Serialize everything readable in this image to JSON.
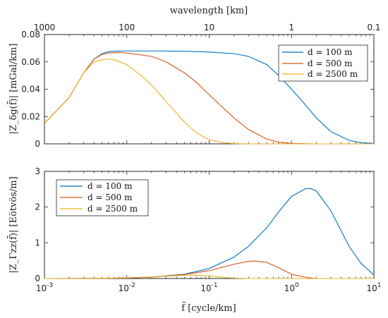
{
  "colors": {
    "d100": "#0072bd",
    "d500": "#d95319",
    "d2500": "#edb120"
  },
  "chart_data": [
    {
      "type": "line",
      "xscale": "log",
      "xlim": [
        0.001,
        10
      ],
      "ylim": [
        0,
        0.08
      ],
      "yticks": [
        "0",
        "0.02",
        "0.04",
        "0.06",
        "0.08"
      ],
      "ylabel": "|Z_δg(f̄)| [mGal/km]",
      "top_xlabel": "wavelength [km]",
      "top_xticks": [
        "1000",
        "100",
        "10",
        "1",
        "0.1"
      ],
      "legend_position": "top-right",
      "series": [
        {
          "name": "d = 100 m",
          "color_key": "d100",
          "points": [
            [
              0.001,
              0.015
            ],
            [
              0.002,
              0.034
            ],
            [
              0.003,
              0.052
            ],
            [
              0.004,
              0.062
            ],
            [
              0.005,
              0.066
            ],
            [
              0.006,
              0.0675
            ],
            [
              0.008,
              0.068
            ],
            [
              0.01,
              0.068
            ],
            [
              0.02,
              0.068
            ],
            [
              0.05,
              0.0678
            ],
            [
              0.1,
              0.0672
            ],
            [
              0.2,
              0.066
            ],
            [
              0.3,
              0.064
            ],
            [
              0.5,
              0.058
            ],
            [
              0.7,
              0.05
            ],
            [
              1,
              0.04
            ],
            [
              1.5,
              0.028
            ],
            [
              2,
              0.019
            ],
            [
              3,
              0.009
            ],
            [
              5,
              0.0025
            ],
            [
              7,
              0.0008
            ],
            [
              10,
              0.0002
            ]
          ]
        },
        {
          "name": "d = 500 m",
          "color_key": "d500",
          "points": [
            [
              0.001,
              0.015
            ],
            [
              0.002,
              0.034
            ],
            [
              0.003,
              0.052
            ],
            [
              0.004,
              0.062
            ],
            [
              0.005,
              0.0655
            ],
            [
              0.006,
              0.0665
            ],
            [
              0.008,
              0.067
            ],
            [
              0.01,
              0.0665
            ],
            [
              0.02,
              0.064
            ],
            [
              0.03,
              0.06
            ],
            [
              0.05,
              0.052
            ],
            [
              0.07,
              0.045
            ],
            [
              0.1,
              0.036
            ],
            [
              0.15,
              0.026
            ],
            [
              0.2,
              0.019
            ],
            [
              0.3,
              0.0105
            ],
            [
              0.5,
              0.0035
            ],
            [
              0.7,
              0.0012
            ],
            [
              1,
              0.0003
            ],
            [
              2,
              0.0
            ],
            [
              10,
              0.0
            ]
          ]
        },
        {
          "name": "d = 2500 m",
          "color_key": "d2500",
          "points": [
            [
              0.001,
              0.015
            ],
            [
              0.002,
              0.034
            ],
            [
              0.003,
              0.052
            ],
            [
              0.004,
              0.06
            ],
            [
              0.005,
              0.0615
            ],
            [
              0.006,
              0.062
            ],
            [
              0.007,
              0.0615
            ],
            [
              0.01,
              0.058
            ],
            [
              0.015,
              0.05
            ],
            [
              0.02,
              0.043
            ],
            [
              0.03,
              0.031
            ],
            [
              0.05,
              0.016
            ],
            [
              0.07,
              0.008
            ],
            [
              0.1,
              0.003
            ],
            [
              0.15,
              0.0008
            ],
            [
              0.2,
              0.0002
            ],
            [
              0.3,
              0.0
            ],
            [
              10,
              0.0
            ]
          ]
        }
      ]
    },
    {
      "type": "line",
      "xscale": "log",
      "xlim": [
        0.001,
        10
      ],
      "ylim": [
        0,
        3
      ],
      "yticks": [
        "0",
        "1",
        "2",
        "3"
      ],
      "xticks": [
        "10^-3",
        "10^-2",
        "10^-1",
        "10^0",
        "10^1"
      ],
      "xlabel": "f̄ [cycle/km]",
      "ylabel": "|Z_Γzz(f̄)| [Eötvös/m]",
      "legend_position": "top-left",
      "series": [
        {
          "name": "d = 100 m",
          "color_key": "d100",
          "points": [
            [
              0.001,
              0.0
            ],
            [
              0.005,
              0.005
            ],
            [
              0.01,
              0.015
            ],
            [
              0.02,
              0.04
            ],
            [
              0.05,
              0.12
            ],
            [
              0.1,
              0.28
            ],
            [
              0.2,
              0.6
            ],
            [
              0.3,
              0.9
            ],
            [
              0.5,
              1.42
            ],
            [
              0.7,
              1.87
            ],
            [
              1,
              2.3
            ],
            [
              1.5,
              2.52
            ],
            [
              1.7,
              2.52
            ],
            [
              2,
              2.45
            ],
            [
              3,
              1.9
            ],
            [
              5,
              0.9
            ],
            [
              7,
              0.42
            ],
            [
              10,
              0.1
            ]
          ]
        },
        {
          "name": "d = 500 m",
          "color_key": "d500",
          "points": [
            [
              0.001,
              0.0
            ],
            [
              0.005,
              0.005
            ],
            [
              0.01,
              0.015
            ],
            [
              0.02,
              0.035
            ],
            [
              0.05,
              0.11
            ],
            [
              0.1,
              0.22
            ],
            [
              0.2,
              0.4
            ],
            [
              0.3,
              0.48
            ],
            [
              0.35,
              0.49
            ],
            [
              0.5,
              0.45
            ],
            [
              0.7,
              0.3
            ],
            [
              1,
              0.12
            ],
            [
              1.5,
              0.03
            ],
            [
              2,
              0.0
            ],
            [
              10,
              0.0
            ]
          ]
        },
        {
          "name": "d = 2500 m",
          "color_key": "d2500",
          "points": [
            [
              0.001,
              0.0
            ],
            [
              0.005,
              0.007
            ],
            [
              0.01,
              0.02
            ],
            [
              0.02,
              0.045
            ],
            [
              0.05,
              0.09
            ],
            [
              0.07,
              0.095
            ],
            [
              0.1,
              0.07
            ],
            [
              0.15,
              0.03
            ],
            [
              0.2,
              0.01
            ],
            [
              0.3,
              0.0
            ],
            [
              10,
              0.0
            ]
          ]
        }
      ]
    }
  ]
}
